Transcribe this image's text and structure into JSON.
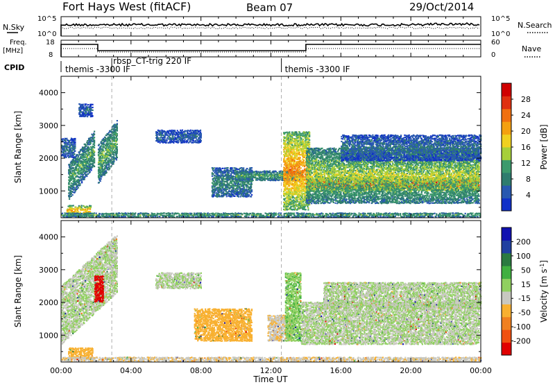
{
  "header": {
    "station": "Fort Hays West (fitACF)",
    "beam": "Beam 07",
    "date": "29/Oct/2014"
  },
  "top_panel": {
    "left_label": "N.Sky",
    "left_ticks": [
      "10^5",
      "10^0"
    ],
    "right_ticks": [
      "10^5",
      "10^0"
    ],
    "right_label": "N.Search",
    "right_line_style": "dotted"
  },
  "freq_panel": {
    "left_label_1": "Freq.",
    "left_label_2": "[MHz]",
    "left_ticks": [
      "18",
      "8"
    ],
    "right_ticks": [
      "60",
      "0"
    ],
    "right_label": "Nave",
    "right_line_style": "dotted"
  },
  "cpid": {
    "label": "CPID",
    "segments": [
      {
        "name": "themis -3300 IF",
        "start_hour": 0.0
      },
      {
        "name": "rbsp_CT-trig 220 IF",
        "start_hour": 2.9
      },
      {
        "name": "themis -3300 IF",
        "start_hour": 12.6
      }
    ]
  },
  "chart_data": [
    {
      "type": "heatmap",
      "panel": "power",
      "ylabel": "Slant Range [km]",
      "x_range_hours": [
        0,
        24
      ],
      "ylim": [
        180,
        4500
      ],
      "y_ticks": [
        1000,
        2000,
        3000,
        4000
      ],
      "colorbar": {
        "label": "Power [dB]",
        "ticks": [
          "28",
          "24",
          "20",
          "16",
          "12",
          "8",
          "4"
        ],
        "range": [
          0,
          32
        ],
        "colors": [
          "#1030c8",
          "#2858b0",
          "#2e7c6e",
          "#3c9a6c",
          "#a6cf3a",
          "#f0d020",
          "#f4a010",
          "#f07010",
          "#e03010",
          "#d00000"
        ]
      },
      "scatter_regions": [
        {
          "t0": 0.4,
          "t1": 1.9,
          "r0": 700,
          "r1": 1800,
          "slope_km_per_h": 700,
          "level": 10
        },
        {
          "t0": 1.0,
          "t1": 1.8,
          "r0": 3250,
          "r1": 3650,
          "level": 5
        },
        {
          "t0": 2.1,
          "t1": 3.2,
          "r0": 1200,
          "r1": 2400,
          "slope_km_per_h": 700,
          "level": 11
        },
        {
          "t0": 0.0,
          "t1": 0.8,
          "r0": 2000,
          "r1": 2600,
          "level": 6
        },
        {
          "t0": 0.3,
          "t1": 1.7,
          "r0": 230,
          "r1": 550,
          "level": 18
        },
        {
          "t0": 5.4,
          "t1": 8.0,
          "r0": 2450,
          "r1": 2850,
          "level": 5
        },
        {
          "t0": 8.6,
          "t1": 10.9,
          "r0": 800,
          "r1": 1700,
          "level": 8
        },
        {
          "t0": 10.0,
          "t1": 13.8,
          "r0": 1300,
          "r1": 1600,
          "level": 10
        },
        {
          "t0": 12.7,
          "t1": 14.2,
          "r0": 400,
          "r1": 2800,
          "level": 20
        },
        {
          "t0": 14.0,
          "t1": 23.9,
          "r0": 1000,
          "r1": 1400,
          "level": 26
        },
        {
          "t0": 14.0,
          "t1": 23.9,
          "r0": 600,
          "r1": 2300,
          "level": 13
        },
        {
          "t0": 16.0,
          "t1": 24.0,
          "r0": 1900,
          "r1": 2700,
          "level": 6
        },
        {
          "t0": 0.0,
          "t1": 24.0,
          "r0": 180,
          "r1": 320,
          "level": 10
        }
      ]
    },
    {
      "type": "heatmap",
      "panel": "velocity",
      "xlabel": "Time UT",
      "ylabel": "Slant Range [km]",
      "x_range_hours": [
        0,
        24
      ],
      "ylim": [
        180,
        4500
      ],
      "y_ticks": [
        1000,
        2000,
        3000,
        4000
      ],
      "x_tick_labels": [
        "00:00",
        "04:00",
        "08:00",
        "12:00",
        "16:00",
        "20:00",
        "00:00"
      ],
      "colorbar": {
        "label": "Velocity [m s^-1]",
        "ticks": [
          "200",
          "100",
          "50",
          "15",
          "-15",
          "-50",
          "-100",
          "-200"
        ],
        "range": [
          -250,
          250
        ],
        "colors": [
          "#e00000",
          "#f05010",
          "#f08020",
          "#f8b030",
          "#c8c8c0",
          "#90d060",
          "#40b040",
          "#2a7a40",
          "#2040a0",
          "#1010b0"
        ]
      },
      "scatter_regions": [
        {
          "t0": 0.0,
          "t1": 3.2,
          "r0": 700,
          "r1": 2500,
          "slope_km_per_h": 500,
          "velocity": 0
        },
        {
          "t0": 0.4,
          "t1": 1.8,
          "r0": 250,
          "r1": 600,
          "velocity": -80
        },
        {
          "t0": 1.9,
          "t1": 2.4,
          "r0": 2000,
          "r1": 2800,
          "velocity": -220
        },
        {
          "t0": 5.4,
          "t1": 8.0,
          "r0": 2400,
          "r1": 2900,
          "velocity": 0
        },
        {
          "t0": 7.6,
          "t1": 10.9,
          "r0": 800,
          "r1": 1800,
          "velocity": -70
        },
        {
          "t0": 11.8,
          "t1": 13.2,
          "r0": 800,
          "r1": 1600,
          "velocity": -40
        },
        {
          "t0": 12.8,
          "t1": 13.7,
          "r0": 800,
          "r1": 2900,
          "velocity": 40
        },
        {
          "t0": 13.7,
          "t1": 23.9,
          "r0": 700,
          "r1": 2000,
          "velocity": 0
        },
        {
          "t0": 15.0,
          "t1": 24.0,
          "r0": 1800,
          "r1": 2600,
          "velocity": 0
        },
        {
          "t0": 0.0,
          "t1": 24.0,
          "r0": 180,
          "r1": 320,
          "velocity": -40
        }
      ]
    }
  ]
}
